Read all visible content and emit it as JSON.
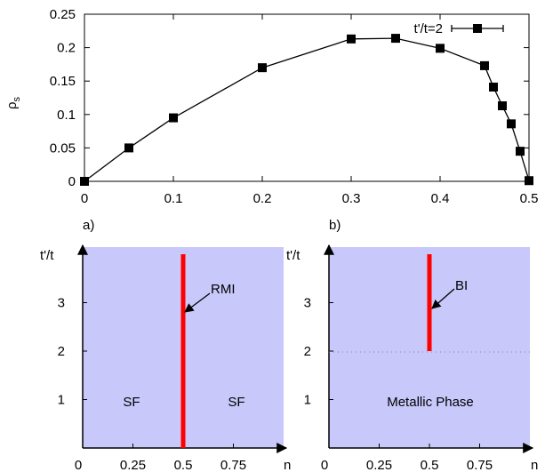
{
  "chart_data": [
    {
      "type": "line",
      "title": "",
      "xlabel": "",
      "ylabel_main": "ρ",
      "ylabel_sub": "s",
      "xlim": [
        0,
        0.5
      ],
      "ylim": [
        0,
        0.25
      ],
      "x_ticks": [
        "0",
        "0.1",
        "0.2",
        "0.3",
        "0.4",
        "0.5"
      ],
      "y_ticks": [
        "0",
        "0.05",
        "0.1",
        "0.15",
        "0.2",
        "0.25"
      ],
      "legend": "top-right",
      "series": [
        {
          "name": "t'/t=2",
          "color": "#000000",
          "marker": "square",
          "x": [
            0,
            0.05,
            0.1,
            0.2,
            0.3,
            0.35,
            0.4,
            0.45,
            0.46,
            0.47,
            0.48,
            0.49,
            0.5
          ],
          "y": [
            0,
            0.05,
            0.095,
            0.17,
            0.213,
            0.214,
            0.199,
            0.173,
            0.141,
            0.113,
            0.086,
            0.045,
            0.001
          ]
        }
      ]
    },
    {
      "type": "phase-diagram",
      "panel_label": "a)",
      "xlabel": "n",
      "ylabel": "t'/t",
      "x_ticks": [
        "0",
        "0.25",
        "0.5",
        "0.75"
      ],
      "y_ticks": [
        "1",
        "2",
        "3"
      ],
      "background_color": "#c8c8fa",
      "line_color": "#ff0000",
      "phase_line": {
        "x": 0.5,
        "y_from": 0,
        "y_to": 4
      },
      "regions": [
        "SF",
        "SF"
      ],
      "annotation": "RMI"
    },
    {
      "type": "phase-diagram",
      "panel_label": "b)",
      "xlabel": "n",
      "ylabel": "t'/t",
      "x_ticks": [
        "0",
        "0.25",
        "0.5",
        "0.75"
      ],
      "y_ticks": [
        "1",
        "2",
        "3"
      ],
      "background_color": "#c8c8fa",
      "line_color": "#ff0000",
      "phase_line": {
        "x": 0.5,
        "y_from": 2,
        "y_to": 4
      },
      "regions": [
        "Metallic Phase"
      ],
      "annotation": "BI"
    }
  ]
}
